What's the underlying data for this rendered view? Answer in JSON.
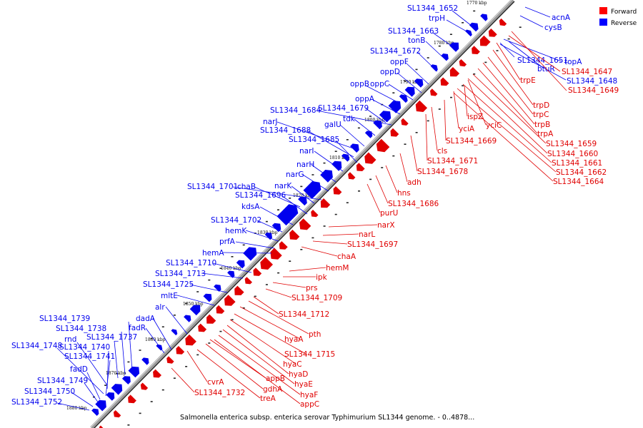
{
  "caption": "Salmonella enterica subsp. enterica serovar Typhimurium SL1344 genome. - 0..4878...",
  "legend": [
    {
      "label": "Forward",
      "color": "#ff0000"
    },
    {
      "label": "Reverse",
      "color": "#0000ff"
    }
  ],
  "ticks": [
    "1770 kbp",
    "1780 kbp",
    "1790 kbp",
    "1800 kbp",
    "1810 kbp",
    "1820 kbp",
    "1830 kbp",
    "1840 kbp",
    "1850 kbp",
    "1860 kbp",
    "1870 kbp",
    "1880 kbp"
  ],
  "reverse_labels": [
    "SL1344_1652",
    "acnA",
    "trpH",
    "cysB",
    "SL1344_1663",
    "tonB",
    "SL1344_1672",
    "SL1344_1651",
    "topA",
    "btuR",
    "SL1344_1648",
    "oppF",
    "oppD",
    "oppB",
    "oppC",
    "oppA",
    "SL1344_1684",
    "SL1344_1679",
    "tdk",
    "narJ",
    "galU",
    "SL1344_1688",
    "SL1344_1685",
    "narI",
    "narH",
    "narG",
    "SL1344_1701",
    "chaB",
    "narK",
    "SL1344_1696",
    "kdsA",
    "SL1344_1702",
    "hemK",
    "prfA",
    "hemA",
    "SL1344_1710",
    "SL1344_1713",
    "SL1344_1725",
    "mltE",
    "alr",
    "dadA",
    "fadR",
    "SL1344_1739",
    "SL1344_1738",
    "SL1344_1737",
    "rnd",
    "SL1344_1740",
    "SL1344_1748",
    "SL1344_1741",
    "fadD",
    "SL1344_1749",
    "SL1344_1750",
    "SL1344_1752"
  ],
  "forward_labels": [
    "SL1344_1647",
    "SL1344_1649",
    "trpE",
    "trpD",
    "trpC",
    "trpB",
    "trpA",
    "ispZ",
    "yciC",
    "yciA",
    "SL1344_1659",
    "SL1344_1669",
    "cls",
    "SL1344_1660",
    "SL1344_1661",
    "SL1344_1671",
    "SL1344_1662",
    "SL1344_1678",
    "SL1344_1664",
    "adh",
    "hns",
    "SL1344_1686",
    "purU",
    "narX",
    "narL",
    "SL1344_1697",
    "chaA",
    "hemM",
    "ipk",
    "prs",
    "SL1344_1709",
    "SL1344_1712",
    "pth",
    "hyaA",
    "SL1344_1715",
    "hyaC",
    "hyaD",
    "hyaE",
    "hyaF",
    "appB",
    "gdhA",
    "cvrA",
    "SL1344_1732",
    "treA",
    "appC"
  ]
}
